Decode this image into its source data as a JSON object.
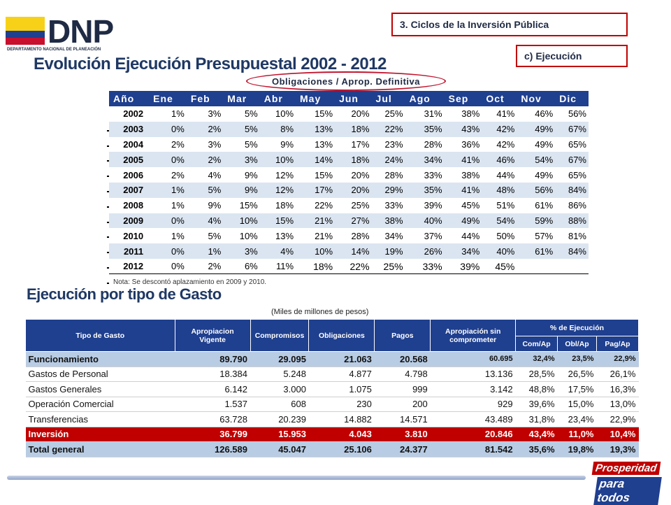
{
  "logo": {
    "text": "DNP",
    "subtitle": "DEPARTAMENTO NACIONAL DE PLANEACIÓN"
  },
  "section": {
    "box1": "3.    Ciclos de la Inversión Pública",
    "box2": "c) Ejecución"
  },
  "title": "Evolución Ejecución Presupuestal 2002 - 2012",
  "oval_label": "Obligaciones / Aprop. Definitiva",
  "monthly": {
    "headers": [
      "Año",
      "Ene",
      "Feb",
      "Mar",
      "Abr",
      "May",
      "Jun",
      "Jul",
      "Ago",
      "Sep",
      "Oct",
      "Nov",
      "Dic"
    ],
    "rows": [
      [
        "2002",
        "1%",
        "3%",
        "5%",
        "10%",
        "15%",
        "20%",
        "25%",
        "31%",
        "38%",
        "41%",
        "46%",
        "56%"
      ],
      [
        "2003",
        "0%",
        "2%",
        "5%",
        "8%",
        "13%",
        "18%",
        "22%",
        "35%",
        "43%",
        "42%",
        "49%",
        "67%"
      ],
      [
        "2004",
        "2%",
        "3%",
        "5%",
        "9%",
        "13%",
        "17%",
        "23%",
        "28%",
        "36%",
        "42%",
        "49%",
        "65%"
      ],
      [
        "2005",
        "0%",
        "2%",
        "3%",
        "10%",
        "14%",
        "18%",
        "24%",
        "34%",
        "41%",
        "46%",
        "54%",
        "67%"
      ],
      [
        "2006",
        "2%",
        "4%",
        "9%",
        "12%",
        "15%",
        "20%",
        "28%",
        "33%",
        "38%",
        "44%",
        "49%",
        "65%"
      ],
      [
        "2007",
        "1%",
        "5%",
        "9%",
        "12%",
        "17%",
        "20%",
        "29%",
        "35%",
        "41%",
        "48%",
        "56%",
        "84%"
      ],
      [
        "2008",
        "1%",
        "9%",
        "15%",
        "18%",
        "22%",
        "25%",
        "33%",
        "39%",
        "45%",
        "51%",
        "61%",
        "86%"
      ],
      [
        "2009",
        "0%",
        "4%",
        "10%",
        "15%",
        "21%",
        "27%",
        "38%",
        "40%",
        "49%",
        "54%",
        "59%",
        "88%"
      ],
      [
        "2010",
        "1%",
        "5%",
        "10%",
        "13%",
        "21%",
        "28%",
        "34%",
        "37%",
        "44%",
        "50%",
        "57%",
        "81%"
      ],
      [
        "2011",
        "0%",
        "1%",
        "3%",
        "4%",
        "10%",
        "14%",
        "19%",
        "26%",
        "34%",
        "40%",
        "61%",
        "84%"
      ],
      [
        "2012",
        "0%",
        "2%",
        "6%",
        "11%",
        "18%",
        "22%",
        "25%",
        "33%",
        "39%",
        "45%",
        "",
        ""
      ]
    ],
    "note": "Nota: Se descontó aplazamiento en 2009 y 2010."
  },
  "subtitle": "Ejecución por tipo de Gasto",
  "units": "(Miles de millones de pesos)",
  "expense": {
    "headers": {
      "tipo": "Tipo de Gasto",
      "apropiacion_l1": "Apropiacion",
      "apropiacion_l2": "Vigente",
      "compromisos": "Compromisos",
      "obligaciones": "Obligaciones",
      "pagos": "Pagos",
      "sin_l1": "Apropiación sin",
      "sin_l2": "comprometer",
      "ejec": "% de Ejecución",
      "com_ap": "Com/Ap",
      "obl_ap": "Obl/Ap",
      "pag_ap": "Pag/Ap"
    },
    "rows": [
      [
        "Funcionamiento",
        "89.790",
        "29.095",
        "21.063",
        "20.568",
        "60.695",
        "32,4%",
        "23,5%",
        "22,9%"
      ],
      [
        "Gastos de Personal",
        "18.384",
        "5.248",
        "4.877",
        "4.798",
        "13.136",
        "28,5%",
        "26,5%",
        "26,1%"
      ],
      [
        "Gastos Generales",
        "6.142",
        "3.000",
        "1.075",
        "999",
        "3.142",
        "48,8%",
        "17,5%",
        "16,3%"
      ],
      [
        "Operación Comercial",
        "1.537",
        "608",
        "230",
        "200",
        "929",
        "39,6%",
        "15,0%",
        "13,0%"
      ],
      [
        "Transferencias",
        "63.728",
        "20.239",
        "14.882",
        "14.571",
        "43.489",
        "31,8%",
        "23,4%",
        "22,9%"
      ],
      [
        "Inversión",
        "36.799",
        "15.953",
        "4.043",
        "3.810",
        "20.846",
        "43,4%",
        "11,0%",
        "10,4%"
      ],
      [
        "Total general",
        "126.589",
        "45.047",
        "25.106",
        "24.377",
        "81.542",
        "35,6%",
        "19,8%",
        "19,3%"
      ]
    ]
  },
  "footer": {
    "line1": "Prosperidad",
    "line2": "para todos"
  },
  "colors": {
    "header_blue": "#1f3f8f",
    "accent_red": "#c00000",
    "row_alt": "#dbe5f1",
    "row_highlight": "#b8cce4"
  }
}
